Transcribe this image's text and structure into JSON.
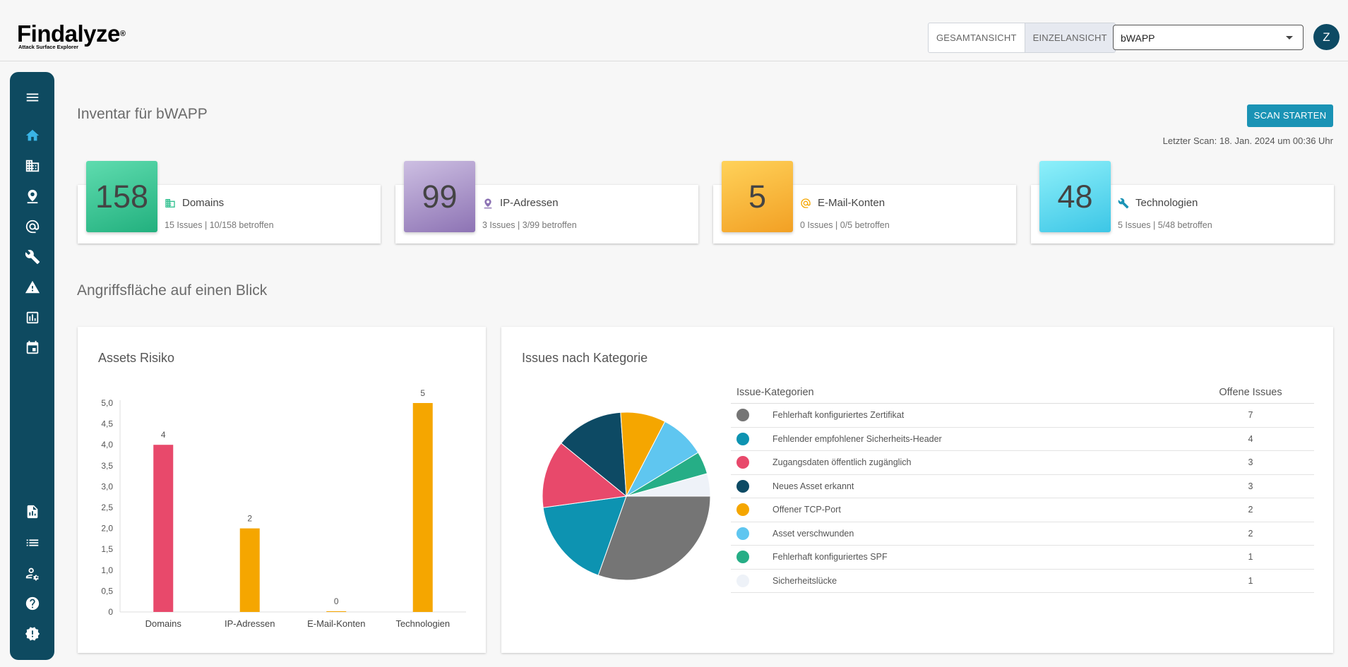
{
  "app": {
    "logo_text": "Findalyze",
    "logo_mark": "®",
    "logo_sub": "Attack Surface Explorer",
    "view_toggle": [
      "GESAMTANSICHT",
      "EINZELANSICHT"
    ],
    "selected_asset": "bWAPP",
    "avatar_initial": "Z"
  },
  "sidebar_icons": [
    "menu-icon",
    "home-icon",
    "building-icon",
    "ip-location-icon",
    "at-icon",
    "wrench-icon",
    "warning-icon",
    "chart-icon",
    "calendar-icon",
    "report-icon",
    "list-icon",
    "user-settings-icon",
    "help-icon",
    "badge-icon"
  ],
  "page": {
    "title": "Inventar für bWAPP",
    "scan_button": "SCAN STARTEN",
    "last_scan": "Letzter Scan: 18. Jan. 2024 um 00:36 Uhr",
    "section_title": "Angriffsfläche auf einen Blick"
  },
  "stats": [
    {
      "value": "158",
      "label": "Domains",
      "sub": "15 Issues | 10/158 betroffen",
      "icon": "building-icon",
      "color": "#2fc08f"
    },
    {
      "value": "99",
      "label": "IP-Adressen",
      "sub": "3 Issues | 3/99 betroffen",
      "icon": "ip-location-icon",
      "color": "#a38fc4"
    },
    {
      "value": "5",
      "label": "E-Mail-Konten",
      "sub": "0 Issues | 0/5 betroffen",
      "icon": "at-icon",
      "color": "#f7b532"
    },
    {
      "value": "48",
      "label": "Technologien",
      "sub": "5 Issues | 5/48 betroffen",
      "icon": "wrench-icon",
      "color": "#5fd6ee"
    }
  ],
  "risk_panel": {
    "title": "Assets Risiko"
  },
  "issues_panel": {
    "title": "Issues nach Kategorie",
    "col_category": "Issue-Kategorien",
    "col_open": "Offene Issues"
  },
  "chart_data": [
    {
      "type": "bar",
      "title": "Assets Risiko",
      "categories": [
        "Domains",
        "IP-Adressen",
        "E-Mail-Konten",
        "Technologien"
      ],
      "values": [
        4,
        2,
        0,
        5
      ],
      "value_labels": [
        "4",
        "2",
        "0",
        "5"
      ],
      "colors": [
        "#e8496b",
        "#f5a600",
        "#f5a600",
        "#f5a600"
      ],
      "ylim": [
        0,
        5
      ],
      "yticks": [
        "0",
        "0,5",
        "1,0",
        "1,5",
        "2,0",
        "2,5",
        "3,0",
        "3,5",
        "4,0",
        "4,5",
        "5,0"
      ]
    },
    {
      "type": "pie",
      "title": "Issues nach Kategorie",
      "categories": [
        "Fehlerhaft konfiguriertes Zertifikat",
        "Fehlender empfohlener Sicherheits-Header",
        "Zugangsdaten öffentlich zugänglich",
        "Neues Asset erkannt",
        "Offener TCP-Port",
        "Asset verschwunden",
        "Fehlerhaft konfiguriertes SPF",
        "Sicherheitslücke"
      ],
      "values": [
        7,
        4,
        3,
        3,
        2,
        2,
        1,
        1
      ],
      "colors": [
        "#757575",
        "#0d93b1",
        "#e8496b",
        "#0d4a64",
        "#f5a600",
        "#5fc6f0",
        "#26ae86",
        "#eef2f8"
      ]
    }
  ]
}
